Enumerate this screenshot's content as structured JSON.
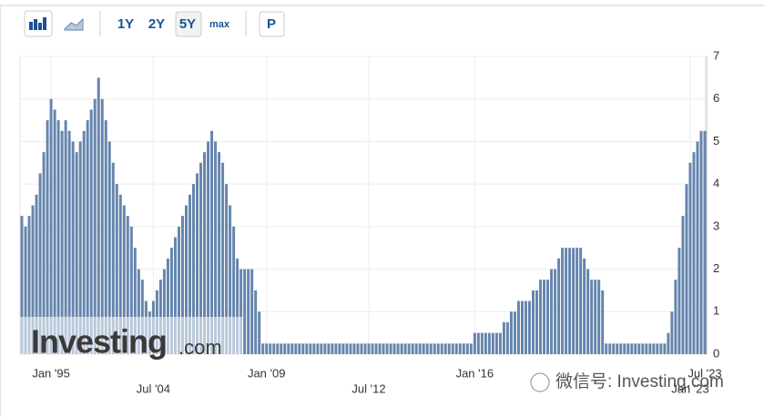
{
  "toolbar": {
    "buttons": [
      "1Y",
      "2Y",
      "5Y",
      "max",
      "P"
    ]
  },
  "watermark": {
    "brand": "Investing",
    "suffix": ".com",
    "wechat": "微信号: Investing.com"
  },
  "chart_data": {
    "type": "bar",
    "color": "#6585ad",
    "grid": true,
    "categories": [
      null,
      null,
      null,
      null,
      null,
      null,
      null,
      null,
      "Jan '95",
      null,
      null,
      null,
      null,
      null,
      null,
      null,
      null,
      null,
      null,
      null,
      null,
      null,
      null,
      null,
      null,
      null,
      null,
      null,
      null,
      null,
      null,
      null,
      null,
      null,
      null,
      null,
      "Jul '04",
      null,
      null,
      null,
      null,
      null,
      null,
      null,
      null,
      null,
      null,
      null,
      null,
      null,
      null,
      null,
      null,
      null,
      null,
      null,
      null,
      null,
      null,
      null,
      null,
      null,
      null,
      null,
      null,
      null,
      null,
      "Jan '09",
      null,
      null,
      null,
      null,
      null,
      null,
      null,
      null,
      null,
      null,
      null,
      null,
      null,
      null,
      null,
      null,
      null,
      null,
      null,
      null,
      null,
      null,
      null,
      null,
      null,
      null,
      null,
      "Jul '12",
      null,
      null,
      null,
      null,
      null,
      null,
      null,
      null,
      null,
      null,
      null,
      null,
      null,
      null,
      null,
      null,
      null,
      null,
      null,
      null,
      null,
      null,
      null,
      null,
      null,
      null,
      null,
      null,
      "Jan '16",
      null,
      null,
      null,
      null,
      null,
      null,
      null,
      null,
      null,
      null,
      null,
      null,
      null,
      null,
      null,
      null,
      null,
      null,
      null,
      null,
      null,
      null,
      null,
      null,
      null,
      null,
      null,
      null,
      null,
      null,
      null,
      null,
      null,
      null,
      null,
      null,
      null,
      null,
      null,
      null,
      null,
      null,
      null,
      null,
      null,
      null,
      null,
      null,
      null,
      null,
      null,
      null,
      null,
      null,
      null,
      null,
      null,
      null,
      "Jan '23",
      null,
      null,
      null,
      "Jul '23"
    ],
    "values": [
      3.25,
      3,
      3.25,
      3.5,
      3.75,
      4.25,
      4.75,
      5.5,
      6,
      5.75,
      5.5,
      5.25,
      5.5,
      5.25,
      5,
      4.75,
      5,
      5.25,
      5.5,
      5.75,
      6,
      6.5,
      6,
      5.5,
      5,
      4.5,
      4,
      3.75,
      3.5,
      3.25,
      3,
      2.5,
      2,
      1.75,
      1.25,
      1,
      1.25,
      1.5,
      1.75,
      2,
      2.25,
      2.5,
      2.75,
      3,
      3.25,
      3.5,
      3.75,
      4,
      4.25,
      4.5,
      4.75,
      5,
      5.25,
      5,
      4.75,
      4.5,
      4,
      3.5,
      3,
      2.25,
      2,
      2,
      2,
      2,
      1.5,
      1,
      0.25,
      0.25,
      0.25,
      0.25,
      0.25,
      0.25,
      0.25,
      0.25,
      0.25,
      0.25,
      0.25,
      0.25,
      0.25,
      0.25,
      0.25,
      0.25,
      0.25,
      0.25,
      0.25,
      0.25,
      0.25,
      0.25,
      0.25,
      0.25,
      0.25,
      0.25,
      0.25,
      0.25,
      0.25,
      0.25,
      0.25,
      0.25,
      0.25,
      0.25,
      0.25,
      0.25,
      0.25,
      0.25,
      0.25,
      0.25,
      0.25,
      0.25,
      0.25,
      0.25,
      0.25,
      0.25,
      0.25,
      0.25,
      0.25,
      0.25,
      0.25,
      0.25,
      0.25,
      0.25,
      0.25,
      0.25,
      0.25,
      0.25,
      0.5,
      0.5,
      0.5,
      0.5,
      0.5,
      0.5,
      0.5,
      0.5,
      0.75,
      0.75,
      1,
      1,
      1.25,
      1.25,
      1.25,
      1.25,
      1.5,
      1.5,
      1.75,
      1.75,
      1.75,
      2,
      2,
      2.25,
      2.5,
      2.5,
      2.5,
      2.5,
      2.5,
      2.5,
      2.25,
      2,
      1.75,
      1.75,
      1.75,
      1.5,
      0.25,
      0.25,
      0.25,
      0.25,
      0.25,
      0.25,
      0.25,
      0.25,
      0.25,
      0.25,
      0.25,
      0.25,
      0.25,
      0.25,
      0.25,
      0.25,
      0.25,
      0.5,
      1,
      1.75,
      2.5,
      3.25,
      4,
      4.5,
      4.75,
      5,
      5.25,
      5.25
    ],
    "ylim": [
      0,
      7
    ],
    "yticks": [
      0,
      1,
      2,
      3,
      4,
      5,
      6,
      7
    ]
  }
}
